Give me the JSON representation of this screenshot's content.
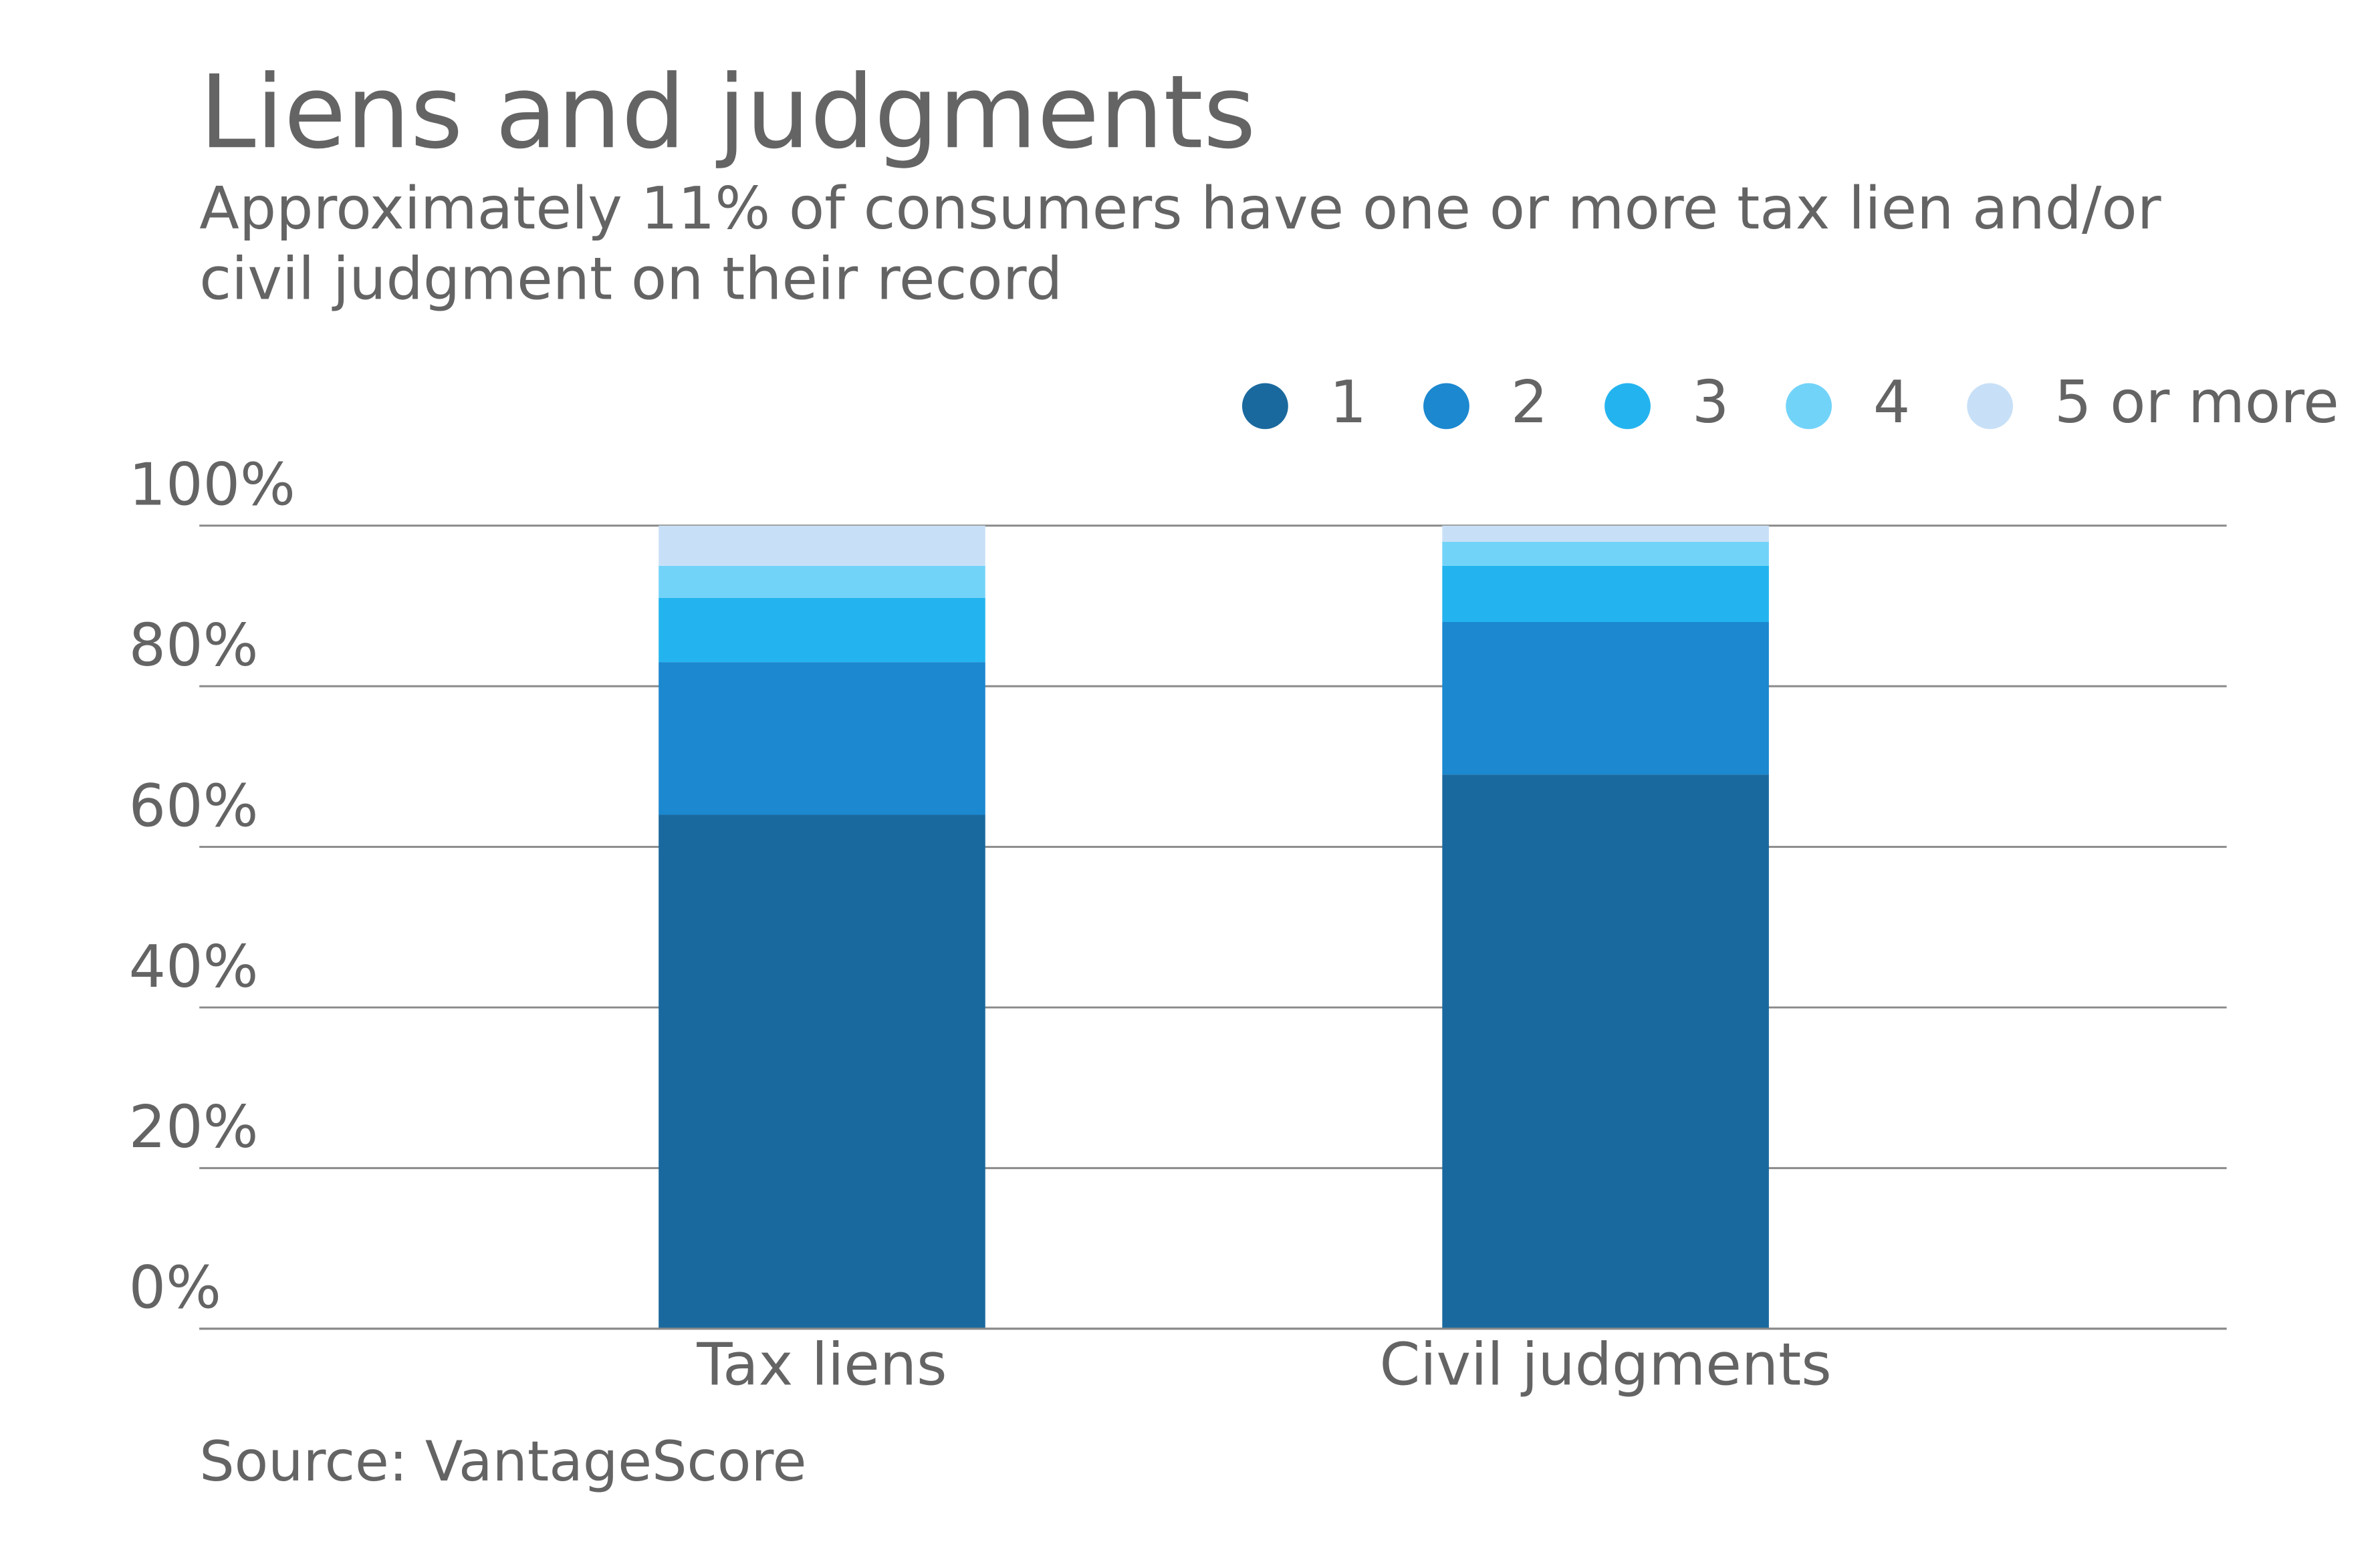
{
  "chart_data": {
    "type": "stacked-bar",
    "title": "Liens and judgments",
    "subtitle": "Approximately 11% of consumers have one or more tax lien and/or civil judgment on their record",
    "source": "Source: VantageScore",
    "categories": [
      "Tax liens",
      "Civil judgments"
    ],
    "series": [
      {
        "name": "1",
        "color": "#1a699e",
        "values": [
          64,
          69
        ]
      },
      {
        "name": "2",
        "color": "#1b88d0",
        "values": [
          19,
          19
        ]
      },
      {
        "name": "3",
        "color": "#23b4ef",
        "values": [
          8,
          7
        ]
      },
      {
        "name": "4",
        "color": "#72d3f9",
        "values": [
          4,
          3
        ]
      },
      {
        "name": "5 or more",
        "color": "#c8e0f7",
        "values": [
          5,
          2
        ]
      }
    ],
    "ylim": [
      0,
      100
    ],
    "yticks": [
      {
        "value": 0,
        "label": "0%"
      },
      {
        "value": 20,
        "label": "20%"
      },
      {
        "value": 40,
        "label": "40%"
      },
      {
        "value": 60,
        "label": "60%"
      },
      {
        "value": 80,
        "label": "80%"
      },
      {
        "value": 100,
        "label": "100%"
      }
    ],
    "grid": true,
    "legend": "top-right"
  }
}
